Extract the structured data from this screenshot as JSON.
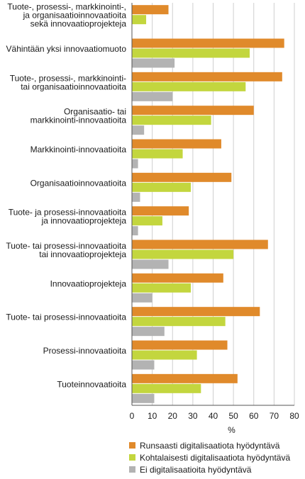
{
  "chart_data": {
    "type": "bar",
    "orientation": "horizontal",
    "categories": [
      [
        "Tuote-, prosessi-, markkinointi-,",
        "ja organisaatioinnovaatioita",
        "sekä innovaatioprojekteja"
      ],
      [
        "Vähintään yksi innovaatiomuoto"
      ],
      [
        "Tuote-, prosessi-, markkinointi-",
        "tai organisaatioinnovaatioita"
      ],
      [
        "Organisaatio- tai",
        "markkinointi-innovaatioita"
      ],
      [
        "Markkinointi-innovaatioita"
      ],
      [
        "Organisaatioinnovaatioita"
      ],
      [
        "Tuote- ja prosessi-innovaatioita",
        "ja innovaatioprojekteja"
      ],
      [
        "Tuote- tai prosessi-innovaatioita",
        "tai innovaatioprojekteja"
      ],
      [
        "Innovaatioprojekteja"
      ],
      [
        "Tuote- tai prosessi-innovaatioita"
      ],
      [
        "Prosessi-innovaatioita"
      ],
      [
        "Tuoteinnovaatioita"
      ]
    ],
    "series": [
      {
        "name": "Runsaasti digitalisaatiota hyödyntävä",
        "color": "#e08a2b",
        "values": [
          18,
          75,
          74,
          60,
          44,
          49,
          28,
          67,
          45,
          63,
          47,
          52
        ]
      },
      {
        "name": "Kohtalaisesti digitalisaatiota hyödyntävä",
        "color": "#c3d63e",
        "values": [
          7,
          58,
          56,
          39,
          25,
          29,
          15,
          50,
          29,
          46,
          32,
          34
        ]
      },
      {
        "name": "Ei digitalisaatioita hyödyntävä",
        "color": "#b3b3b3",
        "values": [
          0,
          21,
          20,
          6,
          3,
          4,
          3,
          18,
          10,
          16,
          11,
          11
        ]
      }
    ],
    "xlabel": "%",
    "xlim": [
      0,
      80
    ],
    "xticks": [
      0,
      10,
      20,
      30,
      40,
      50,
      60,
      70,
      80
    ],
    "grid": "vertical",
    "legend": "bottom"
  }
}
